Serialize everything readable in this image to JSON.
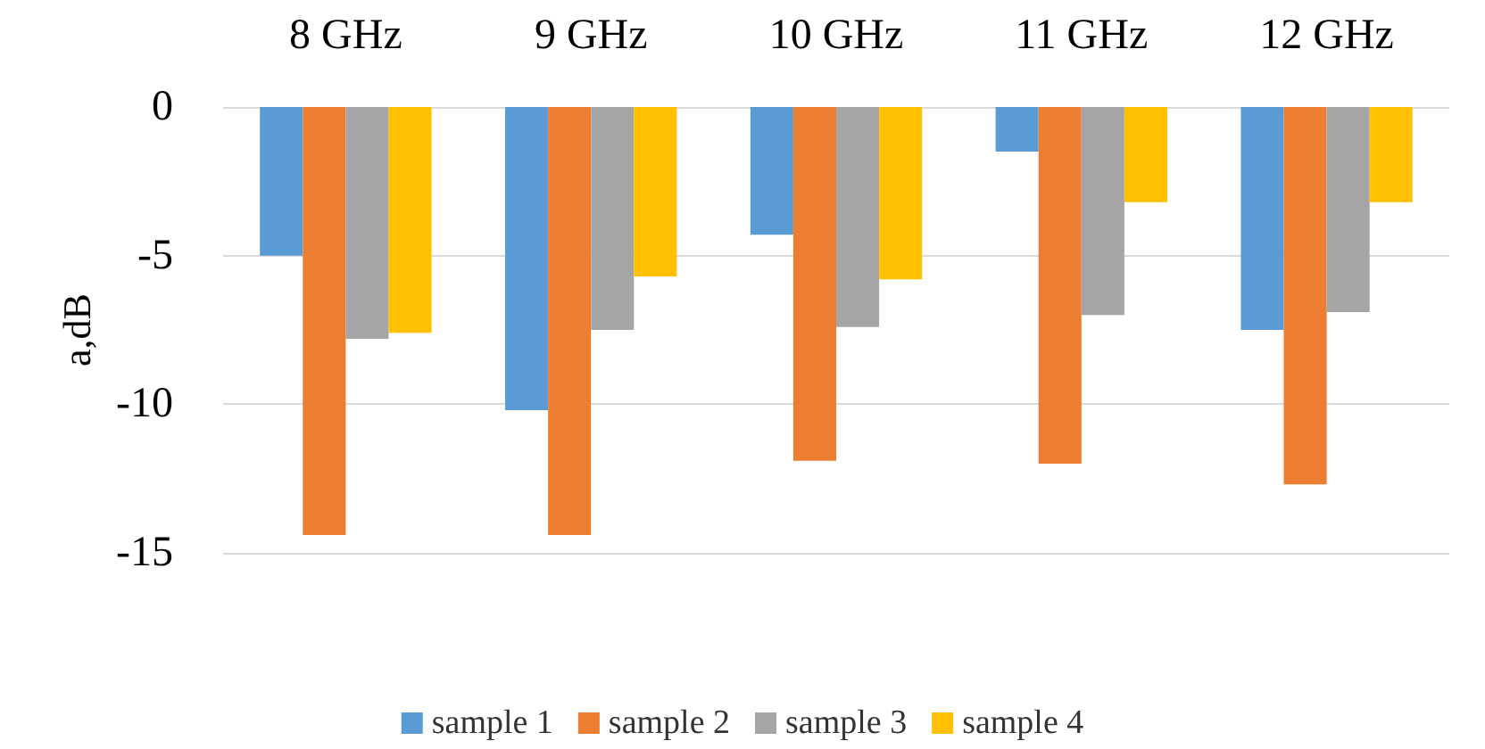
{
  "chart_data": {
    "type": "bar",
    "ylabel": "a,dB",
    "categories": [
      "8 GHz",
      "9 GHz",
      "10 GHz",
      "11 GHz",
      "12 GHz"
    ],
    "series": [
      {
        "name": "sample 1",
        "color": "#5b9bd5",
        "values": [
          -5.0,
          -10.2,
          -4.3,
          -1.5,
          -7.5
        ]
      },
      {
        "name": "sample 2",
        "color": "#ed7d31",
        "values": [
          -14.4,
          -14.4,
          -11.9,
          -12.0,
          -12.7
        ]
      },
      {
        "name": "sample 3",
        "color": "#a5a5a5",
        "values": [
          -7.8,
          -7.5,
          -7.4,
          -7.0,
          -6.9
        ]
      },
      {
        "name": "sample 4",
        "color": "#ffc000",
        "values": [
          -7.6,
          -5.7,
          -5.8,
          -3.2,
          -3.2
        ]
      }
    ],
    "ylim": [
      -15,
      0
    ],
    "yticks": [
      -15,
      -10,
      -5,
      0
    ],
    "grid": "y",
    "legend": "bottom"
  }
}
